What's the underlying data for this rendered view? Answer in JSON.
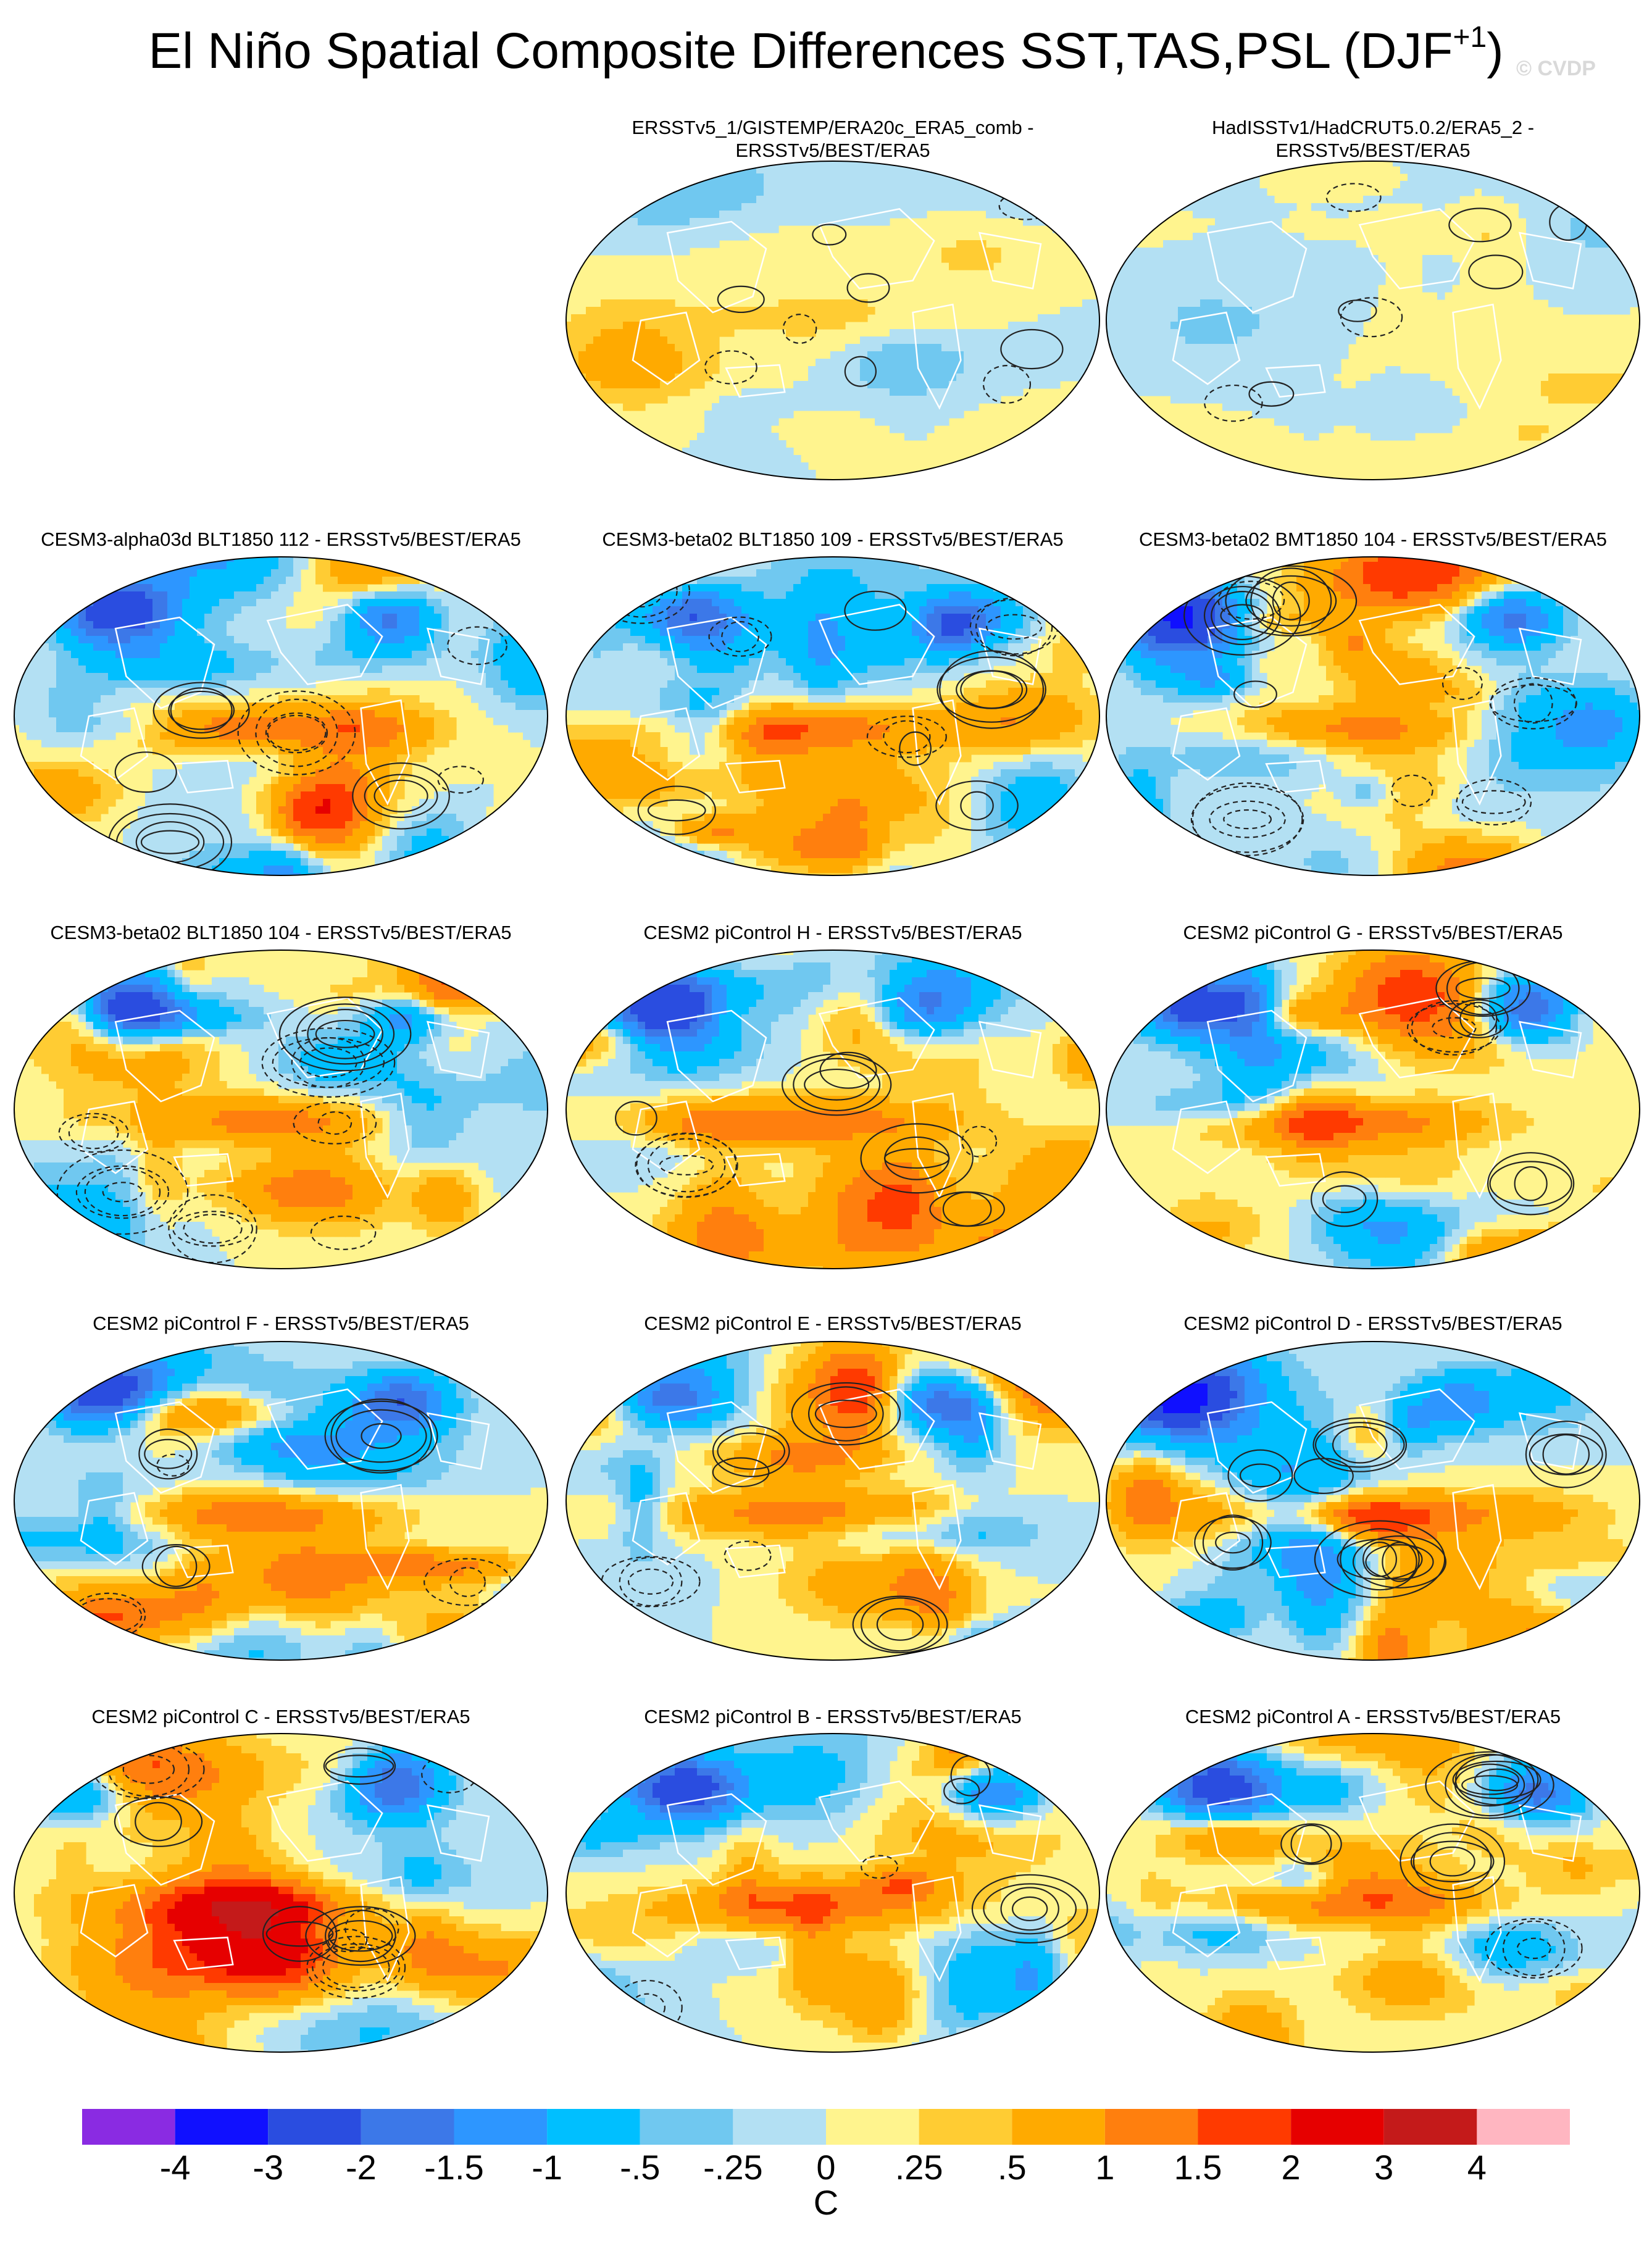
{
  "title": {
    "text": "El Niño Spatial Composite Differences SST,TAS,PSL (DJF",
    "superscript": "+1",
    "close": ")"
  },
  "watermark": "© CVDP",
  "panels": [
    {
      "title_line1": "ERSSTv5_1/GISTEMP/ERA20c_ERA5_comb -",
      "title_line2": "ERSSTv5/BEST/ERA5",
      "seed": 11,
      "intensity": 0.35
    },
    {
      "title_line1": "HadISSTv1/HadCRUT5.0.2/ERA5_2 -",
      "title_line2": "ERSSTv5/BEST/ERA5",
      "seed": 23,
      "intensity": 0.3
    },
    {
      "title_line1": "CESM3-alpha03d BLT1850 112 - ERSSTv5/BEST/ERA5",
      "seed": 37,
      "intensity": 1.0
    },
    {
      "title_line1": "CESM3-beta02 BLT1850 109 - ERSSTv5/BEST/ERA5",
      "seed": 41,
      "intensity": 1.0
    },
    {
      "title_line1": "CESM3-beta02 BMT1850 104 - ERSSTv5/BEST/ERA5",
      "seed": 53,
      "intensity": 1.0
    },
    {
      "title_line1": "CESM3-beta02 BLT1850 104 - ERSSTv5/BEST/ERA5",
      "seed": 67,
      "intensity": 1.0
    },
    {
      "title_line1": "CESM2 piControl H - ERSSTv5/BEST/ERA5",
      "seed": 71,
      "intensity": 1.0
    },
    {
      "title_line1": "CESM2 piControl G - ERSSTv5/BEST/ERA5",
      "seed": 83,
      "intensity": 1.0
    },
    {
      "title_line1": "CESM2 piControl F - ERSSTv5/BEST/ERA5",
      "seed": 97,
      "intensity": 1.0
    },
    {
      "title_line1": "CESM2 piControl E - ERSSTv5/BEST/ERA5",
      "seed": 101,
      "intensity": 1.0
    },
    {
      "title_line1": "CESM2 piControl D - ERSSTv5/BEST/ERA5",
      "seed": 113,
      "intensity": 1.0
    },
    {
      "title_line1": "CESM2 piControl C - ERSSTv5/BEST/ERA5",
      "seed": 127,
      "intensity": 1.0
    },
    {
      "title_line1": "CESM2 piControl B - ERSSTv5/BEST/ERA5",
      "seed": 131,
      "intensity": 1.0
    },
    {
      "title_line1": "CESM2 piControl A - ERSSTv5/BEST/ERA5",
      "seed": 149,
      "intensity": 1.0
    }
  ],
  "colorbar": {
    "colors": [
      "#8a2be2",
      "#1010ff",
      "#2a4de0",
      "#3c78e8",
      "#2d96ff",
      "#00bfff",
      "#70c8f0",
      "#b3e0f3",
      "#fff48e",
      "#ffcc33",
      "#ffaa00",
      "#ff7f0e",
      "#ff3a00",
      "#e60000",
      "#c41a1a",
      "#ffb6c1"
    ],
    "labels": [
      "-4",
      "-3",
      "-2",
      "-1.5",
      "-1",
      "-.5",
      "-.25",
      "0",
      ".25",
      ".5",
      "1",
      "1.5",
      "2",
      "3",
      "4"
    ],
    "unit": "C"
  },
  "chart_data": {
    "type": "heatmap",
    "title": "El Niño Spatial Composite Differences SST,TAS,PSL (DJF+1)",
    "projection": "Robinson",
    "panel_count": 14,
    "contour_levels": [
      -4,
      -3,
      -2,
      -1.5,
      -1,
      -0.5,
      -0.25,
      0,
      0.25,
      0.5,
      1,
      1.5,
      2,
      3,
      4
    ],
    "unit": "C",
    "overlay": "PSL difference contours (solid positive, dashed negative)"
  }
}
